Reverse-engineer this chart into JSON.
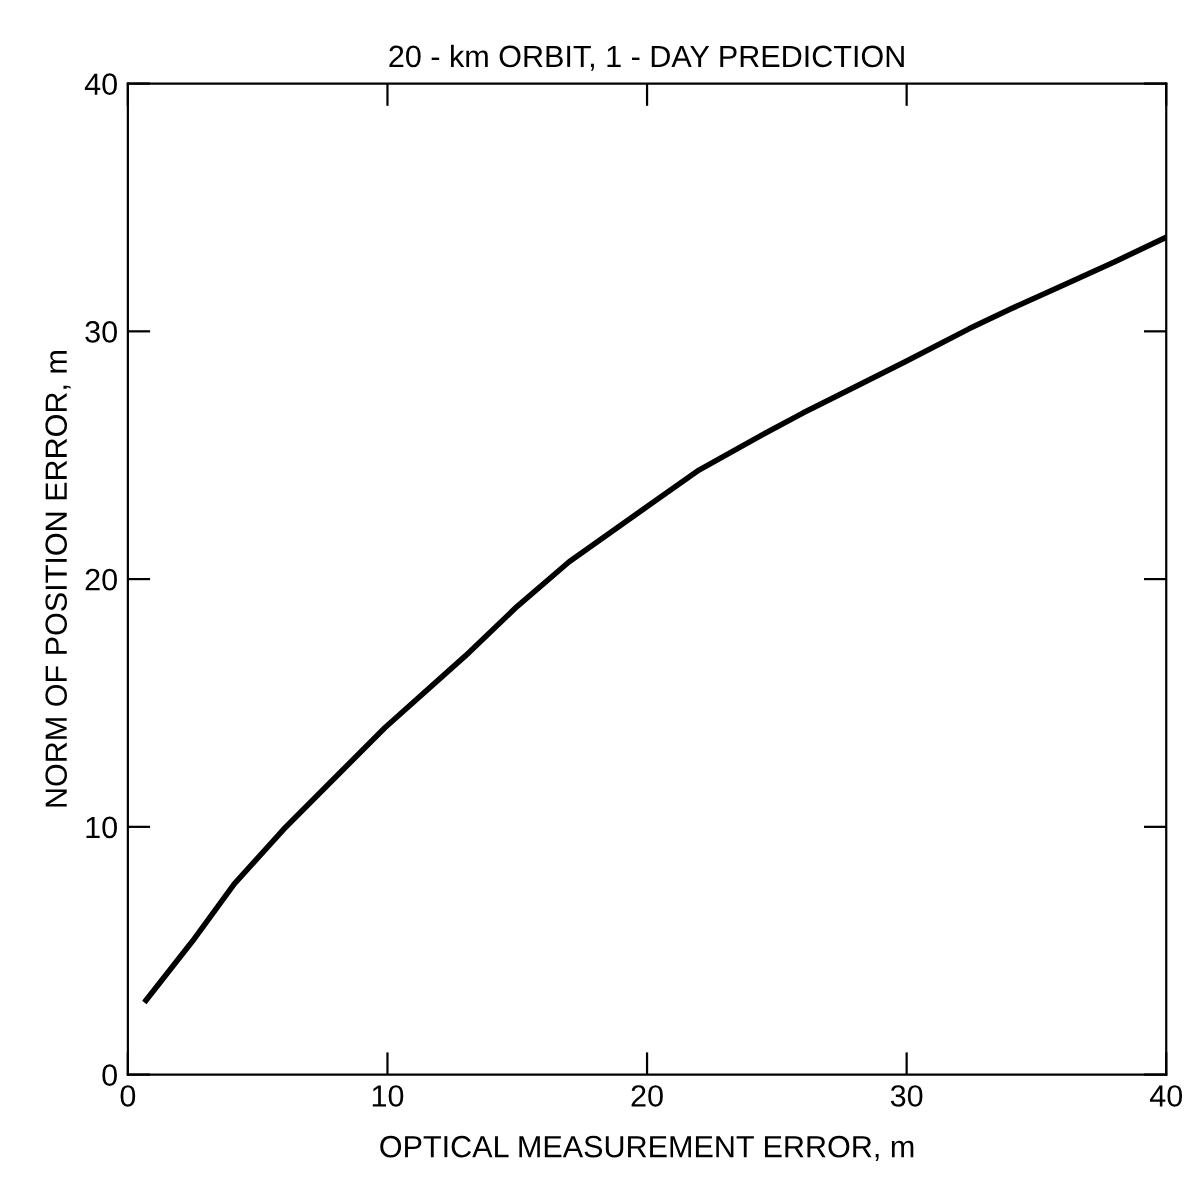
{
  "chart_data": {
    "type": "line",
    "title": "20 - km ORBIT, 1 - DAY PREDICTION",
    "xlabel": "OPTICAL MEASUREMENT ERROR, m",
    "ylabel": "NORM OF POSITION ERROR, m",
    "x": [
      0.7,
      2.5,
      4.1,
      6,
      7.9,
      9.9,
      13,
      15,
      17,
      20.1,
      22,
      24.4,
      26,
      28.1,
      30,
      32.4,
      34,
      35.9,
      38,
      40
    ],
    "series": [
      {
        "color": "#000000",
        "values": [
          3.0,
          5.4,
          7.7,
          9.9,
          11.9,
          14.0,
          16.9,
          18.9,
          20.7,
          23.0,
          24.4,
          25.8,
          26.7,
          27.8,
          28.8,
          30.1,
          30.9,
          31.8,
          32.8,
          33.8
        ]
      }
    ],
    "xlim": [
      0,
      40
    ],
    "ylim": [
      0,
      40
    ],
    "xticks": [
      0,
      10,
      20,
      30,
      40
    ],
    "yticks": [
      0,
      10,
      20,
      30,
      40
    ],
    "grid": false,
    "legend": false,
    "marker": "none",
    "line_style": "solid"
  }
}
